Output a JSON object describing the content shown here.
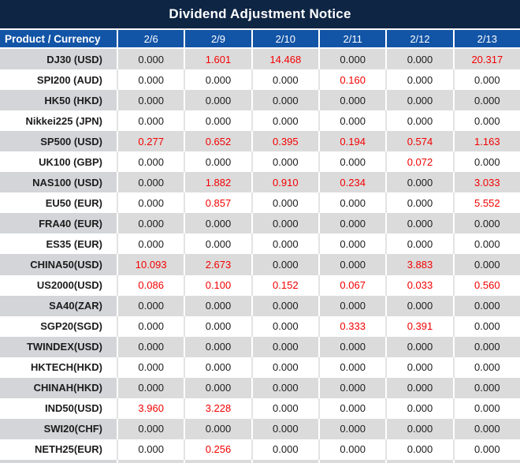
{
  "title": "Dividend Adjustment Notice",
  "table": {
    "product_header": "Product / Currency",
    "date_columns": [
      "2/6",
      "2/9",
      "2/10",
      "2/11",
      "2/12",
      "2/13"
    ],
    "rows": [
      {
        "product": "DJ30 (USD)",
        "values": [
          "0.000",
          "1.601",
          "14.468",
          "0.000",
          "0.000",
          "20.317"
        ]
      },
      {
        "product": "SPI200 (AUD)",
        "values": [
          "0.000",
          "0.000",
          "0.000",
          "0.160",
          "0.000",
          "0.000"
        ]
      },
      {
        "product": "HK50 (HKD)",
        "values": [
          "0.000",
          "0.000",
          "0.000",
          "0.000",
          "0.000",
          "0.000"
        ]
      },
      {
        "product": "Nikkei225 (JPN)",
        "values": [
          "0.000",
          "0.000",
          "0.000",
          "0.000",
          "0.000",
          "0.000"
        ]
      },
      {
        "product": "SP500 (USD)",
        "values": [
          "0.277",
          "0.652",
          "0.395",
          "0.194",
          "0.574",
          "1.163"
        ]
      },
      {
        "product": "UK100 (GBP)",
        "values": [
          "0.000",
          "0.000",
          "0.000",
          "0.000",
          "0.072",
          "0.000"
        ]
      },
      {
        "product": "NAS100 (USD)",
        "values": [
          "0.000",
          "1.882",
          "0.910",
          "0.234",
          "0.000",
          "3.033"
        ]
      },
      {
        "product": "EU50 (EUR)",
        "values": [
          "0.000",
          "0.857",
          "0.000",
          "0.000",
          "0.000",
          "5.552"
        ]
      },
      {
        "product": "FRA40 (EUR)",
        "values": [
          "0.000",
          "0.000",
          "0.000",
          "0.000",
          "0.000",
          "0.000"
        ]
      },
      {
        "product": "ES35 (EUR)",
        "values": [
          "0.000",
          "0.000",
          "0.000",
          "0.000",
          "0.000",
          "0.000"
        ]
      },
      {
        "product": "CHINA50(USD)",
        "values": [
          "10.093",
          "2.673",
          "0.000",
          "0.000",
          "3.883",
          "0.000"
        ]
      },
      {
        "product": "US2000(USD)",
        "values": [
          "0.086",
          "0.100",
          "0.152",
          "0.067",
          "0.033",
          "0.560"
        ]
      },
      {
        "product": "SA40(ZAR)",
        "values": [
          "0.000",
          "0.000",
          "0.000",
          "0.000",
          "0.000",
          "0.000"
        ]
      },
      {
        "product": "SGP20(SGD)",
        "values": [
          "0.000",
          "0.000",
          "0.000",
          "0.333",
          "0.391",
          "0.000"
        ]
      },
      {
        "product": "TWINDEX(USD)",
        "values": [
          "0.000",
          "0.000",
          "0.000",
          "0.000",
          "0.000",
          "0.000"
        ]
      },
      {
        "product": "HKTECH(HKD)",
        "values": [
          "0.000",
          "0.000",
          "0.000",
          "0.000",
          "0.000",
          "0.000"
        ]
      },
      {
        "product": "CHINAH(HKD)",
        "values": [
          "0.000",
          "0.000",
          "0.000",
          "0.000",
          "0.000",
          "0.000"
        ]
      },
      {
        "product": "IND50(USD)",
        "values": [
          "3.960",
          "3.228",
          "0.000",
          "0.000",
          "0.000",
          "0.000"
        ]
      },
      {
        "product": "SWI20(CHF)",
        "values": [
          "0.000",
          "0.000",
          "0.000",
          "0.000",
          "0.000",
          "0.000"
        ]
      },
      {
        "product": "NETH25(EUR)",
        "values": [
          "0.000",
          "0.256",
          "0.000",
          "0.000",
          "0.000",
          "0.000"
        ]
      }
    ],
    "zero_value": "0.000"
  },
  "colors": {
    "navy": "#0e2544",
    "header_blue": "#1254a6",
    "red": "#f40000",
    "gray_first_col": "#d3d5d8",
    "gray_cell": "#dbdbdb"
  }
}
